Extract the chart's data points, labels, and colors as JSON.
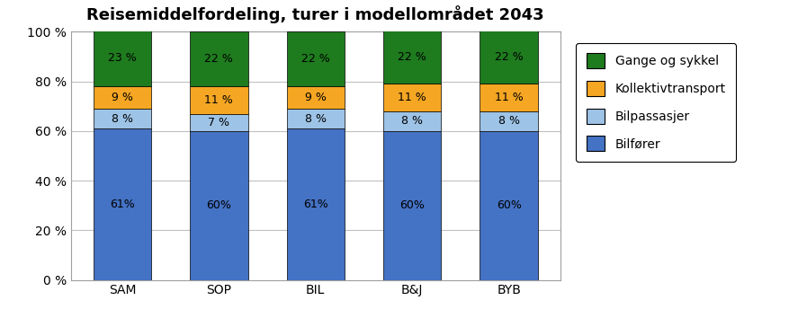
{
  "title": "Reisemiddelfordeling, turer i modellområdet 2043",
  "categories": [
    "SAM",
    "SOP",
    "BIL",
    "B&J",
    "BYB"
  ],
  "series": {
    "Bilfører": [
      61,
      60,
      61,
      60,
      60
    ],
    "Bilpassasjer": [
      8,
      7,
      8,
      8,
      8
    ],
    "Kollektivtransport": [
      9,
      11,
      9,
      11,
      11
    ],
    "Gange og sykkel": [
      23,
      22,
      22,
      22,
      22
    ]
  },
  "colors": {
    "Bilfører": "#4472C4",
    "Bilpassasjer": "#9DC3E6",
    "Kollektivtransport": "#F5A623",
    "Gange og sykkel": "#1E7B1E"
  },
  "labels": {
    "Bilfører": [
      "61%",
      "60%",
      "61%",
      "60%",
      "60%"
    ],
    "Bilpassasjer": [
      "8 %",
      "7 %",
      "8 %",
      "8 %",
      "8 %"
    ],
    "Kollektivtransport": [
      "9 %",
      "11 %",
      "9 %",
      "11 %",
      "11 %"
    ],
    "Gange og sykkel": [
      "23 %",
      "22 %",
      "22 %",
      "22 %",
      "22 %"
    ]
  },
  "ylim": [
    0,
    100
  ],
  "yticks": [
    0,
    20,
    40,
    60,
    80,
    100
  ],
  "ytick_labels": [
    "0 %",
    "20 %",
    "40 %",
    "60 %",
    "80 %",
    "100 %"
  ],
  "series_order": [
    "Bilfører",
    "Bilpassasjer",
    "Kollektivtransport",
    "Gange og sykkel"
  ],
  "legend_order": [
    "Gange og sykkel",
    "Kollektivtransport",
    "Bilpassasjer",
    "Bilfører"
  ],
  "background_color": "#ffffff",
  "grid_color": "#c0c0c0",
  "title_fontsize": 13,
  "label_fontsize": 9,
  "tick_fontsize": 10,
  "legend_fontsize": 10,
  "bar_width": 0.6
}
